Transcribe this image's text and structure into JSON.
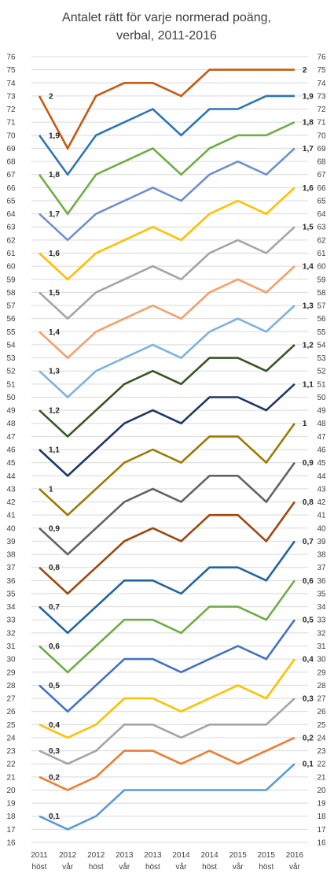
{
  "chart_data": {
    "type": "line",
    "title_line1": "Antalet rätt för varje normerad poäng,",
    "title_line2": "verbal, 2011-2016",
    "categories": [
      {
        "year": "2011",
        "term": "höst"
      },
      {
        "year": "2012",
        "term": "vår"
      },
      {
        "year": "2012",
        "term": "höst"
      },
      {
        "year": "2013",
        "term": "vår"
      },
      {
        "year": "2013",
        "term": "höst"
      },
      {
        "year": "2014",
        "term": "vår"
      },
      {
        "year": "2014",
        "term": "höst"
      },
      {
        "year": "2015",
        "term": "vår"
      },
      {
        "year": "2015",
        "term": "höst"
      },
      {
        "year": "2016",
        "term": "vår"
      }
    ],
    "ylim": [
      16,
      76
    ],
    "yticks": [
      16,
      17,
      18,
      19,
      20,
      21,
      22,
      23,
      24,
      25,
      26,
      27,
      28,
      29,
      30,
      31,
      32,
      33,
      34,
      35,
      36,
      37,
      38,
      39,
      40,
      41,
      42,
      43,
      44,
      45,
      46,
      47,
      48,
      49,
      50,
      51,
      52,
      53,
      54,
      55,
      56,
      57,
      58,
      59,
      60,
      61,
      62,
      63,
      64,
      65,
      66,
      67,
      68,
      69,
      70,
      71,
      72,
      73,
      74,
      75,
      76
    ],
    "grid": true,
    "dual_y_axis": true,
    "series": [
      {
        "name": "2",
        "color": "#C55A11",
        "values": [
          73,
          69,
          73,
          74,
          74,
          73,
          75,
          75,
          75,
          75
        ]
      },
      {
        "name": "1,9",
        "color": "#2E75B6",
        "values": [
          70,
          67,
          70,
          71,
          72,
          70,
          72,
          72,
          73,
          73
        ]
      },
      {
        "name": "1,8",
        "color": "#70AD47",
        "values": [
          67,
          64,
          67,
          68,
          69,
          67,
          69,
          70,
          70,
          71
        ]
      },
      {
        "name": "1,7",
        "color": "#6F8FD0",
        "values": [
          64,
          62,
          64,
          65,
          66,
          65,
          67,
          68,
          67,
          69
        ]
      },
      {
        "name": "1,6",
        "color": "#FFC000",
        "values": [
          61,
          59,
          61,
          62,
          63,
          62,
          64,
          65,
          64,
          66
        ]
      },
      {
        "name": "1,5",
        "color": "#A5A5A5",
        "values": [
          58,
          56,
          58,
          59,
          60,
          59,
          61,
          62,
          61,
          63
        ]
      },
      {
        "name": "1,4",
        "color": "#F4A06B",
        "values": [
          55,
          53,
          55,
          56,
          57,
          56,
          58,
          59,
          58,
          60
        ]
      },
      {
        "name": "1,3",
        "color": "#7FB2E0",
        "values": [
          52,
          50,
          52,
          53,
          54,
          53,
          55,
          56,
          55,
          57
        ]
      },
      {
        "name": "1,2",
        "color": "#375623",
        "values": [
          49,
          47,
          49,
          51,
          52,
          51,
          53,
          53,
          52,
          54
        ]
      },
      {
        "name": "1,1",
        "color": "#1F3864",
        "values": [
          46,
          44,
          46,
          48,
          49,
          48,
          50,
          50,
          49,
          51
        ]
      },
      {
        "name": "1",
        "color": "#9C7A00",
        "values": [
          43,
          41,
          43,
          45,
          46,
          45,
          47,
          47,
          45,
          48
        ]
      },
      {
        "name": "0,9",
        "color": "#636363",
        "values": [
          40,
          38,
          40,
          42,
          43,
          42,
          44,
          44,
          42,
          45
        ]
      },
      {
        "name": "0,8",
        "color": "#9E480E",
        "values": [
          37,
          35,
          37,
          39,
          40,
          39,
          41,
          41,
          39,
          42
        ]
      },
      {
        "name": "0,7",
        "color": "#2264A0",
        "values": [
          34,
          32,
          34,
          36,
          36,
          35,
          37,
          37,
          36,
          39
        ]
      },
      {
        "name": "0,6",
        "color": "#70AD47",
        "values": [
          31,
          29,
          31,
          33,
          33,
          32,
          34,
          34,
          33,
          36
        ]
      },
      {
        "name": "0,5",
        "color": "#4472C4",
        "values": [
          28,
          26,
          28,
          30,
          30,
          29,
          30,
          31,
          30,
          33
        ]
      },
      {
        "name": "0,4",
        "color": "#FFC000",
        "values": [
          25,
          24,
          25,
          27,
          27,
          26,
          27,
          28,
          27,
          30
        ]
      },
      {
        "name": "0,3",
        "color": "#A5A5A5",
        "values": [
          23,
          22,
          23,
          25,
          25,
          24,
          25,
          25,
          25,
          27
        ]
      },
      {
        "name": "0,2",
        "color": "#ED7D31",
        "values": [
          21,
          20,
          21,
          23,
          23,
          22,
          23,
          22,
          23,
          24
        ]
      },
      {
        "name": "0,1",
        "color": "#5B9BD5",
        "values": [
          18,
          17,
          18,
          20,
          20,
          20,
          20,
          20,
          20,
          22
        ]
      }
    ]
  }
}
